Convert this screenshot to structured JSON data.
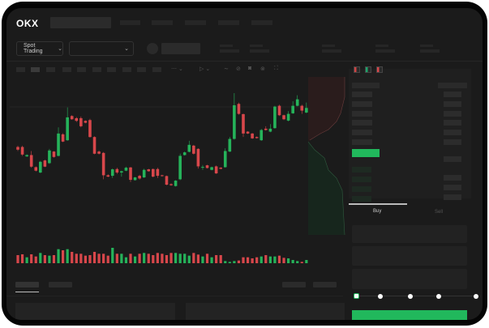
{
  "header": {
    "logo": "OKX"
  },
  "toolbar": {
    "market_select": "Spot Trading"
  },
  "order_panel": {
    "buy_tab": "Buy",
    "sell_tab": "Sell",
    "leverage_level": 0
  },
  "colors": {
    "up": "#25b35a",
    "down": "#d8474b",
    "accent": "#21b85c",
    "background": "#1b1b1b"
  },
  "icons": [
    "chevron-down-icon",
    "order-book-both-icon",
    "order-book-bids-icon",
    "order-book-asks-icon",
    "indicator-icon",
    "draw-icon",
    "camera-icon",
    "settings-icon",
    "fullscreen-icon"
  ],
  "chart_data": {
    "type": "candlestick",
    "ylim": [
      0,
      400
    ],
    "grid": false,
    "candles": [
      [
        185,
        175,
        190,
        170
      ],
      [
        185,
        157,
        190,
        152
      ],
      [
        150,
        155,
        158,
        148
      ],
      [
        155,
        112,
        170,
        108
      ],
      [
        110,
        97,
        113,
        94
      ],
      [
        90,
        130,
        133,
        88
      ],
      [
        135,
        112,
        138,
        110
      ],
      [
        125,
        172,
        178,
        122
      ],
      [
        168,
        148,
        170,
        145
      ],
      [
        152,
        235,
        258,
        150
      ],
      [
        232,
        205,
        236,
        203
      ],
      [
        210,
        295,
        332,
        208
      ],
      [
        300,
        288,
        303,
        286
      ],
      [
        292,
        282,
        296,
        278
      ],
      [
        292,
        262,
        298,
        258
      ],
      [
        282,
        275,
        284,
        273
      ],
      [
        285,
        222,
        290,
        220
      ],
      [
        222,
        160,
        225,
        158
      ],
      [
        168,
        160,
        172,
        157
      ],
      [
        163,
        80,
        166,
        65
      ],
      [
        80,
        75,
        84,
        73
      ],
      [
        78,
        102,
        105,
        70
      ],
      [
        103,
        90,
        108,
        85
      ],
      [
        90,
        95,
        97,
        75
      ],
      [
        97,
        108,
        112,
        95
      ],
      [
        109,
        63,
        111,
        55
      ],
      [
        62,
        72,
        74,
        60
      ],
      [
        78,
        68,
        82,
        64
      ],
      [
        72,
        100,
        104,
        70
      ],
      [
        102,
        95,
        104,
        93
      ],
      [
        103,
        75,
        105,
        72
      ],
      [
        103,
        78,
        108,
        70
      ],
      [
        80,
        77,
        82,
        75
      ],
      [
        77,
        45,
        79,
        43
      ],
      [
        47,
        43,
        50,
        41
      ],
      [
        40,
        60,
        62,
        38
      ],
      [
        65,
        152,
        160,
        62
      ],
      [
        155,
        165,
        168,
        153
      ],
      [
        167,
        193,
        208,
        165
      ],
      [
        190,
        160,
        193,
        157
      ],
      [
        178,
        113,
        180,
        105
      ],
      [
        108,
        111,
        118,
        100
      ],
      [
        117,
        107,
        119,
        105
      ],
      [
        100,
        110,
        112,
        98
      ],
      [
        113,
        87,
        116,
        85
      ],
      [
        108,
        104,
        110,
        102
      ],
      [
        110,
        170,
        180,
        108
      ],
      [
        168,
        215,
        222,
        166
      ],
      [
        215,
        340,
        385,
        212
      ],
      [
        345,
        308,
        350,
        305
      ],
      [
        307,
        235,
        309,
        222
      ],
      [
        242,
        235,
        244,
        233
      ],
      [
        235,
        217,
        237,
        215
      ],
      [
        222,
        218,
        224,
        216
      ],
      [
        210,
        248,
        252,
        208
      ],
      [
        253,
        248,
        262,
        246
      ],
      [
        242,
        253,
        270,
        240
      ],
      [
        255,
        335,
        338,
        253
      ],
      [
        338,
        303,
        342,
        300
      ],
      [
        303,
        288,
        305,
        285
      ],
      [
        283,
        308,
        318,
        280
      ],
      [
        310,
        338,
        355,
        308
      ],
      [
        338,
        362,
        377,
        336
      ],
      [
        338,
        320,
        342,
        308
      ],
      [
        313,
        330,
        350,
        310
      ]
    ],
    "volume": [
      30,
      33,
      22,
      33,
      25,
      38,
      30,
      28,
      30,
      52,
      48,
      52,
      42,
      35,
      35,
      28,
      30,
      42,
      35,
      35,
      28,
      57,
      35,
      35,
      22,
      35,
      25,
      35,
      38,
      35,
      30,
      38,
      35,
      30,
      38,
      38,
      35,
      35,
      28,
      38,
      32,
      25,
      35,
      22,
      30,
      30,
      8,
      5,
      8,
      10,
      22,
      22,
      18,
      22,
      25,
      30,
      25,
      25,
      28,
      20,
      18,
      12,
      8,
      5,
      12
    ]
  }
}
